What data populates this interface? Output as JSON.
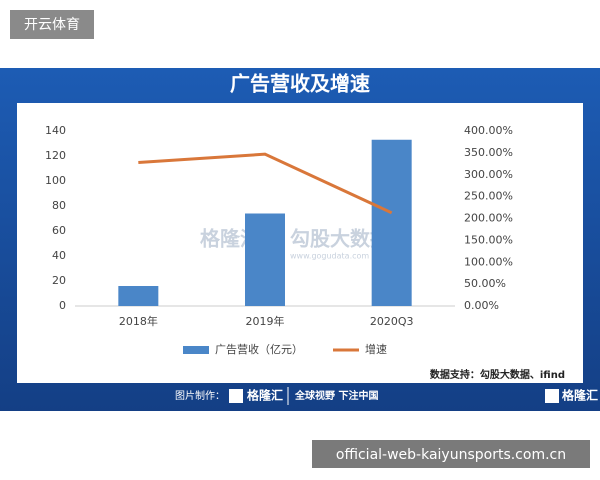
{
  "page": {
    "label": "开云体育",
    "url": "official-web-kaiyunsports.com.cn"
  },
  "chart_data": {
    "type": "bar-line",
    "title": "广告营收及增速",
    "categories": [
      "2018年",
      "2019年",
      "2020Q3"
    ],
    "series": [
      {
        "name": "广告营收（亿元）",
        "color": "#4a86c8",
        "type": "bar",
        "values": [
          16,
          74,
          133
        ]
      },
      {
        "name": "增速",
        "color": "#d9773a",
        "type": "line",
        "axis": "y2",
        "values": [
          328,
          347,
          213
        ]
      }
    ],
    "ylim": [
      0,
      140
    ],
    "yticks": [
      0,
      20,
      40,
      60,
      80,
      100,
      120,
      140
    ],
    "y2lim": [
      0,
      400
    ],
    "y2ticks": [
      {
        "value": 0,
        "label": "0.00%"
      },
      {
        "value": 50,
        "label": "50.00%"
      },
      {
        "value": 100,
        "label": "100.00%"
      },
      {
        "value": 150,
        "label": "150.00%"
      },
      {
        "value": 200,
        "label": "200.00%"
      },
      {
        "value": 250,
        "label": "250.00%"
      },
      {
        "value": 300,
        "label": "300.00%"
      },
      {
        "value": 350,
        "label": "350.00%"
      },
      {
        "value": 400,
        "label": "400.00%"
      }
    ],
    "legend": "bottom",
    "source": "数据支持：勾股大数据、ifind"
  },
  "watermark": {
    "brand": "格隆汇",
    "text": "勾股大数据",
    "url": "www.gogudata.com"
  },
  "footer": {
    "credit": "图片制作：",
    "logo": "格隆汇",
    "slogan": "全球视野 下注中国",
    "brand": "格隆汇"
  }
}
